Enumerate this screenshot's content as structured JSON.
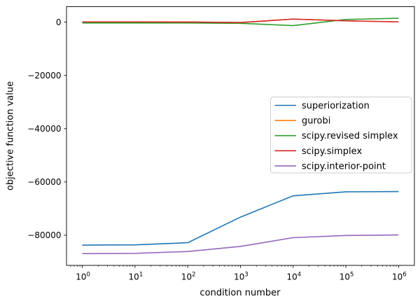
{
  "figure": {
    "background": "#ffffff",
    "border_color": "#000000"
  },
  "chart_data": {
    "type": "line",
    "title": "",
    "xlabel": "condition number",
    "ylabel": "objective function value",
    "xscale": "log",
    "grid": false,
    "x": [
      1,
      10,
      100,
      1000,
      10000,
      100000,
      1000000
    ],
    "series": [
      {
        "name": "superiorization",
        "color": "#1f77b4",
        "values": [
          -83700,
          -83600,
          -82800,
          -73200,
          -65200,
          -63700,
          -63600
        ]
      },
      {
        "name": "gurobi",
        "color": "#ff7f0e",
        "values": [
          100,
          100,
          50,
          -150,
          1150,
          500,
          100
        ]
      },
      {
        "name": "scipy.revised simplex",
        "color": "#2ca02c",
        "values": [
          -300,
          -300,
          -300,
          -450,
          -1300,
          1000,
          1450
        ]
      },
      {
        "name": "scipy.simplex",
        "color": "#d62728",
        "values": [
          100,
          100,
          50,
          -150,
          1150,
          500,
          100
        ]
      },
      {
        "name": "scipy.interior-point",
        "color": "#9467bd",
        "values": [
          -86900,
          -86800,
          -86100,
          -84200,
          -80900,
          -80100,
          -79900
        ]
      }
    ],
    "xtick_exponents": [
      0,
      1,
      2,
      3,
      4,
      5,
      6
    ],
    "xtick_base": "10",
    "yticks": [
      0,
      -20000,
      -40000,
      -60000,
      -80000
    ],
    "ytick_labels": [
      "0",
      "−20000",
      "−40000",
      "−60000",
      "−80000"
    ],
    "xlim_log": [
      -0.3,
      6.3
    ],
    "ylim": [
      -91315,
      5815
    ],
    "legend": {
      "position": "center-right",
      "entries": [
        "superiorization",
        "gurobi",
        "scipy.revised simplex",
        "scipy.simplex",
        "scipy.interior-point"
      ]
    }
  }
}
